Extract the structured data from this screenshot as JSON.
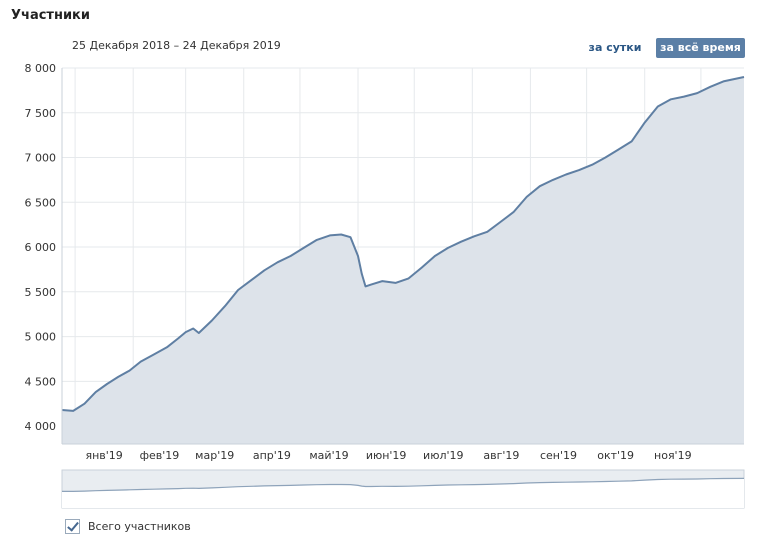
{
  "header": {
    "title": "Участники",
    "date_range": "25 Декабря 2018 – 24 Декабря 2019"
  },
  "controls": {
    "per_day_label": "за сутки",
    "all_time_label": "за всё время"
  },
  "legend": {
    "label": "Всего участников",
    "checked": true
  },
  "colors": {
    "line": "#5f7fa3",
    "area": "#dde3ea",
    "grid": "#e6e9ec",
    "navigator_bg": "#e9edf1",
    "active_button": "#5b7fa6"
  },
  "chart_data": {
    "type": "area",
    "title": "",
    "xlabel": "",
    "ylabel": "",
    "x_start": "2018-12-25",
    "x_end": "2019-12-24",
    "ylim": [
      3800,
      8000
    ],
    "y_ticks": [
      8000,
      7500,
      7000,
      6500,
      6000,
      5500,
      5000,
      4500,
      4000
    ],
    "y_tick_labels": [
      "8 000",
      "7 500",
      "7 000",
      "6 500",
      "6 000",
      "5 500",
      "5 000",
      "4 500",
      "4 000"
    ],
    "x_tick_labels": [
      "янв'19",
      "фев'19",
      "мар'19",
      "апр'19",
      "май'19",
      "июн'19",
      "июл'19",
      "авг'19",
      "сен'19",
      "окт'19",
      "ноя'19"
    ],
    "grid": true,
    "series": [
      {
        "name": "Всего участников",
        "points": [
          [
            "2018-12-25",
            4180
          ],
          [
            "2018-12-31",
            4170
          ],
          [
            "2019-01-06",
            4250
          ],
          [
            "2019-01-12",
            4380
          ],
          [
            "2019-01-18",
            4470
          ],
          [
            "2019-01-24",
            4550
          ],
          [
            "2019-01-30",
            4620
          ],
          [
            "2019-02-05",
            4720
          ],
          [
            "2019-02-12",
            4800
          ],
          [
            "2019-02-19",
            4880
          ],
          [
            "2019-02-25",
            4980
          ],
          [
            "2019-03-01",
            5050
          ],
          [
            "2019-03-05",
            5090
          ],
          [
            "2019-03-08",
            5040
          ],
          [
            "2019-03-15",
            5180
          ],
          [
            "2019-03-22",
            5340
          ],
          [
            "2019-03-29",
            5520
          ],
          [
            "2019-04-05",
            5630
          ],
          [
            "2019-04-12",
            5740
          ],
          [
            "2019-04-19",
            5830
          ],
          [
            "2019-04-26",
            5900
          ],
          [
            "2019-05-03",
            5990
          ],
          [
            "2019-05-10",
            6080
          ],
          [
            "2019-05-17",
            6130
          ],
          [
            "2019-05-23",
            6140
          ],
          [
            "2019-05-28",
            6110
          ],
          [
            "2019-06-01",
            5900
          ],
          [
            "2019-06-03",
            5700
          ],
          [
            "2019-06-05",
            5560
          ],
          [
            "2019-06-08",
            5580
          ],
          [
            "2019-06-14",
            5620
          ],
          [
            "2019-06-21",
            5600
          ],
          [
            "2019-06-28",
            5650
          ],
          [
            "2019-07-05",
            5770
          ],
          [
            "2019-07-12",
            5900
          ],
          [
            "2019-07-19",
            5990
          ],
          [
            "2019-07-26",
            6060
          ],
          [
            "2019-08-02",
            6120
          ],
          [
            "2019-08-09",
            6170
          ],
          [
            "2019-08-16",
            6280
          ],
          [
            "2019-08-23",
            6390
          ],
          [
            "2019-08-30",
            6560
          ],
          [
            "2019-09-06",
            6680
          ],
          [
            "2019-09-13",
            6750
          ],
          [
            "2019-09-20",
            6810
          ],
          [
            "2019-09-27",
            6860
          ],
          [
            "2019-10-04",
            6920
          ],
          [
            "2019-10-11",
            7000
          ],
          [
            "2019-10-18",
            7090
          ],
          [
            "2019-10-25",
            7180
          ],
          [
            "2019-11-01",
            7390
          ],
          [
            "2019-11-08",
            7570
          ],
          [
            "2019-11-15",
            7650
          ],
          [
            "2019-11-22",
            7680
          ],
          [
            "2019-11-29",
            7720
          ],
          [
            "2019-12-06",
            7790
          ],
          [
            "2019-12-13",
            7850
          ],
          [
            "2019-12-24",
            7900
          ]
        ]
      }
    ]
  }
}
